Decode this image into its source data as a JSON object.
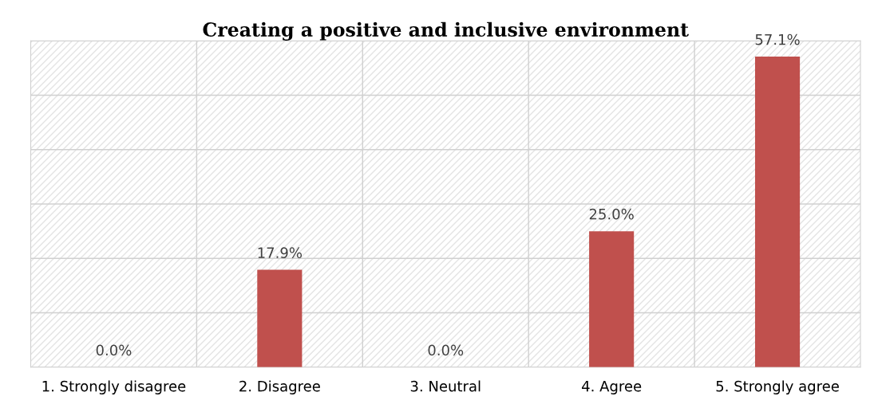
{
  "chart_data": {
    "type": "bar",
    "title": "Creating a positive and inclusive environment",
    "categories": [
      "1. Strongly disagree",
      "2. Disagree",
      "3. Neutral",
      "4. Agree",
      "5. Strongly agree"
    ],
    "values": [
      0.0,
      17.9,
      0.0,
      25.0,
      57.1
    ],
    "value_labels": [
      "0.0%",
      "17.9%",
      "0.0%",
      "25.0%",
      "57.1%"
    ],
    "color": "#c0504d",
    "ylim": [
      0,
      60
    ],
    "yticks": [
      {
        "value": 0,
        "label": null
      },
      {
        "value": 10,
        "label": null
      },
      {
        "value": 20,
        "label": null
      },
      {
        "value": 30,
        "label": null
      },
      {
        "value": 40,
        "label": null
      },
      {
        "value": 50,
        "label": null
      },
      {
        "value": 60,
        "label": null
      }
    ],
    "tick_labels": "x",
    "grid": true
  }
}
